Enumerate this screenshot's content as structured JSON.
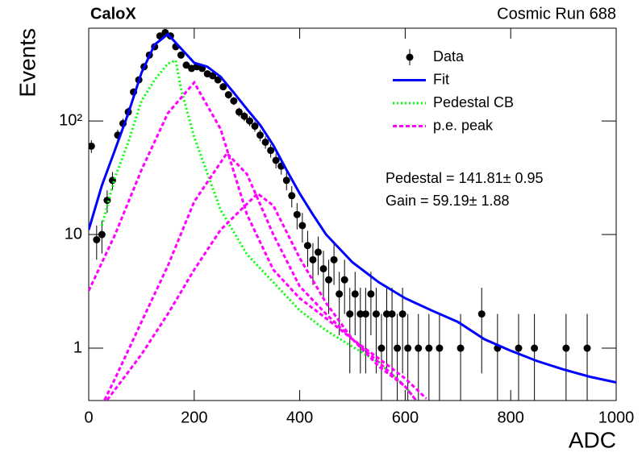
{
  "chart_data": {
    "type": "scatter",
    "title": "CaloX",
    "subtitle": "Cosmic Run 688",
    "x_label": "ADC",
    "y_label": "Events",
    "annotations": [
      "Pedestal = 141.81± 0.95",
      "Gain = 59.19± 1.88"
    ],
    "log_y": true,
    "xlim": [
      0,
      1000
    ],
    "ylim": [
      0.346,
      655
    ],
    "xticks": [
      0,
      200,
      400,
      600,
      800,
      1000
    ],
    "yticks": [
      1,
      10,
      {
        "value": 100,
        "label": "10²"
      }
    ],
    "legend": "upper right",
    "series": [
      {
        "name": "Data",
        "color": "#000000",
        "style": "points",
        "x": [
          5,
          15,
          25,
          35,
          45,
          55,
          65,
          75,
          85,
          95,
          105,
          115,
          125,
          135,
          145,
          155,
          165,
          175,
          185,
          195,
          205,
          215,
          225,
          235,
          245,
          255,
          265,
          275,
          285,
          295,
          305,
          315,
          325,
          335,
          345,
          355,
          365,
          375,
          385,
          395,
          405,
          415,
          425,
          435,
          445,
          455,
          465,
          475,
          485,
          495,
          505,
          515,
          525,
          535,
          545,
          555,
          565,
          575,
          585,
          595,
          605,
          625,
          645,
          665,
          705,
          745,
          775,
          815,
          845,
          905,
          945
        ],
        "values": [
          60,
          9,
          10,
          20,
          30,
          75,
          95,
          120,
          180,
          230,
          300,
          380,
          450,
          560,
          600,
          560,
          450,
          380,
          310,
          290,
          300,
          290,
          260,
          250,
          230,
          200,
          170,
          150,
          120,
          110,
          100,
          90,
          75,
          65,
          55,
          45,
          40,
          30,
          22,
          15,
          12,
          8,
          6,
          7,
          5,
          4,
          6,
          3,
          4,
          2,
          3,
          2,
          2,
          3,
          2,
          1,
          2,
          2,
          1,
          2,
          1,
          1,
          1,
          1,
          1,
          2,
          1,
          1,
          1,
          1,
          1
        ],
        "errors": [
          7.7,
          3,
          3.2,
          4.5,
          5.5,
          8.7,
          9.7,
          11,
          13.4,
          15.2,
          17.3,
          19.5,
          21.2,
          23.7,
          24.5,
          23.7,
          21.2,
          19.5,
          17.6,
          17,
          17.3,
          17,
          16.1,
          15.8,
          15.2,
          14.1,
          13,
          12.2,
          11,
          10.5,
          10,
          9.5,
          8.7,
          8.1,
          7.4,
          6.7,
          6.3,
          5.5,
          4.7,
          3.9,
          3.5,
          2.8,
          2.4,
          2.6,
          2.2,
          2,
          2.4,
          1.7,
          2,
          1.4,
          1.7,
          1.4,
          1.4,
          1.7,
          1.4,
          1,
          1.4,
          1.4,
          1,
          1.4,
          1,
          1,
          1,
          1,
          1,
          1.4,
          1,
          1,
          1,
          1,
          1
        ]
      },
      {
        "name": "Fit",
        "color": "#0000ff",
        "style": "solid",
        "x": [
          0,
          25,
          50,
          75,
          100,
          125,
          150,
          175,
          200,
          225,
          250,
          275,
          300,
          325,
          350,
          375,
          400,
          425,
          450,
          500,
          550,
          600,
          650,
          700,
          750,
          800,
          850,
          900,
          950,
          1000
        ],
        "values": [
          11,
          27,
          56,
          117,
          265,
          470,
          580,
          435,
          325,
          300,
          245,
          177,
          127,
          92,
          61,
          37,
          23,
          15,
          10,
          5.7,
          3.8,
          2.75,
          2.15,
          1.7,
          1.2,
          0.95,
          0.77,
          0.65,
          0.56,
          0.5
        ]
      },
      {
        "name": "Pedestal CB",
        "color": "#00ff00",
        "style": "dotted",
        "x": [
          25,
          50,
          75,
          100,
          125,
          150,
          165,
          175,
          200,
          250,
          300,
          350,
          400,
          450,
          500,
          550,
          600,
          620
        ],
        "values": [
          12,
          32,
          65,
          150,
          230,
          320,
          340,
          192,
          72,
          16.5,
          6.7,
          3.8,
          2.15,
          1.43,
          1.03,
          0.75,
          0.46,
          0.35
        ]
      },
      {
        "name": "p.e. peak",
        "color": "#ff00ff",
        "style": "dashed",
        "curves": [
          {
            "x": [
              0,
              50,
              100,
              150,
              200,
              250,
              300,
              350,
              400,
              450,
              500,
              550,
              600,
              640
            ],
            "values": [
              3.2,
              10,
              37,
              117,
              218,
              85,
              15,
              4.9,
              2.75,
              1.83,
              1.2,
              0.81,
              0.54,
              0.36
            ]
          },
          {
            "x": [
              30,
              50,
              100,
              150,
              200,
              262,
              300,
              350,
              400,
              450,
              500,
              550,
              600,
              620
            ],
            "values": [
              0.35,
              0.54,
              1.7,
              5.3,
              19.5,
              52,
              34,
              10,
              3.5,
              2,
              1.2,
              0.75,
              0.46,
              0.35
            ]
          },
          {
            "x": [
              35,
              100,
              150,
              200,
              250,
              320,
              350,
              400,
              450,
              500,
              550,
              600,
              620
            ],
            "values": [
              0.35,
              0.88,
              2,
              4.9,
              11,
              23,
              18,
              6.2,
              2.5,
              1.2,
              0.69,
              0.46,
              0.35
            ]
          }
        ]
      }
    ]
  }
}
